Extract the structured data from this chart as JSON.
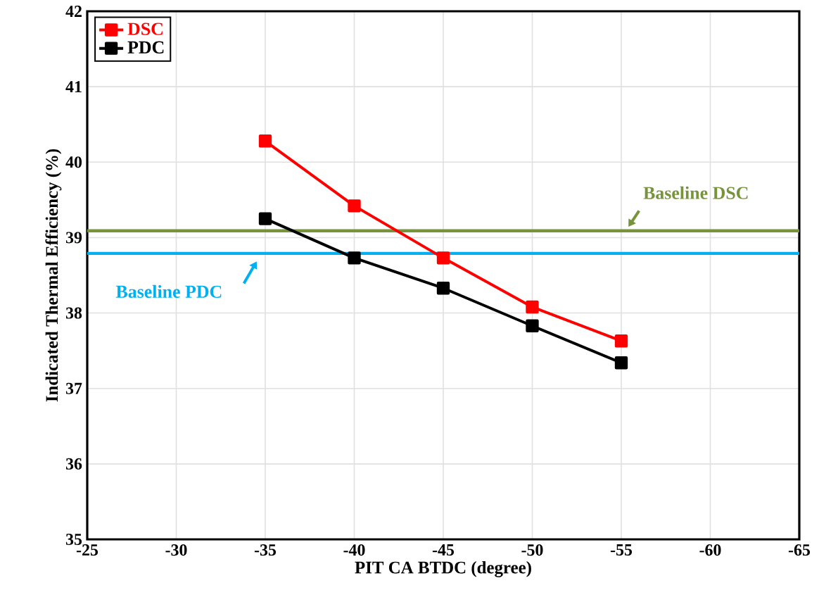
{
  "chart_data": {
    "type": "line",
    "xlabel": "PIT CA BTDC (degree)",
    "ylabel": "Indicated Thermal Efficiency (%)",
    "x": [
      -35,
      -40,
      -45,
      -50,
      -55
    ],
    "series": [
      {
        "name": "DSC",
        "color": "#ff0000",
        "values": [
          40.28,
          39.42,
          38.73,
          38.08,
          37.63
        ]
      },
      {
        "name": "PDC",
        "color": "#000000",
        "values": [
          39.25,
          38.73,
          38.33,
          37.83,
          37.34
        ]
      }
    ],
    "ref_lines": [
      {
        "axis": "y",
        "value": 39.09,
        "label": "Baseline DSC",
        "color": "#77933c"
      },
      {
        "axis": "y",
        "value": 38.79,
        "label": "Baseline PDC",
        "color": "#00b0f0"
      }
    ],
    "xlim": [
      -25,
      -65
    ],
    "xticks": [
      -25,
      -30,
      -35,
      -40,
      -45,
      -50,
      -55,
      -60,
      -65
    ],
    "ylim": [
      35,
      42
    ],
    "yticks": [
      35,
      36,
      37,
      38,
      39,
      40,
      41,
      42
    ],
    "grid": true,
    "legend": "top left",
    "marker": "square",
    "line_style": "solid"
  }
}
